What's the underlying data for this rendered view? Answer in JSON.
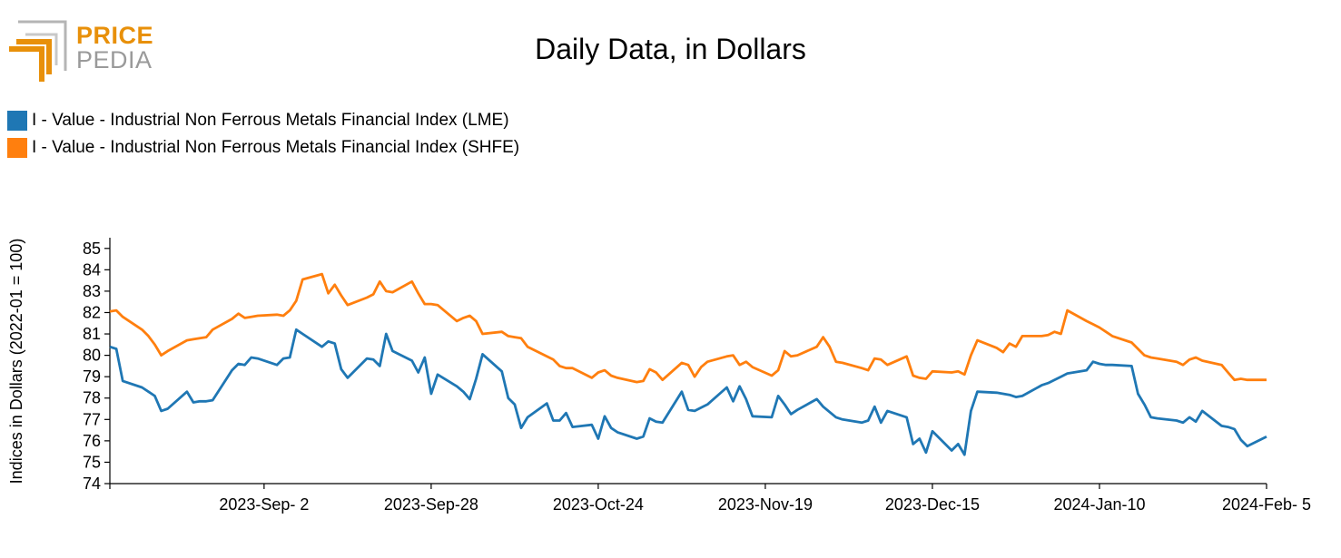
{
  "logo": {
    "word_top": "PRICE",
    "word_bottom": "PEDIA"
  },
  "colors": {
    "lme": "#1f77b4",
    "shfe": "#ff7f0e",
    "logo_orange": "#e8900a",
    "logo_gray": "#9a9a9a"
  },
  "chart_data": {
    "type": "line",
    "title": "Daily Data, in Dollars",
    "ylabel": "Indices in Dollars (2022-01 = 100)",
    "xlabel": "",
    "ylim": [
      74,
      85.5
    ],
    "yticks": [
      74,
      75,
      76,
      77,
      78,
      79,
      80,
      81,
      82,
      83,
      84,
      85
    ],
    "xlim": [
      "2023-08-09",
      "2024-02-05"
    ],
    "xticks": [
      {
        "date": "2023-09-02",
        "label": "2023-Sep- 2"
      },
      {
        "date": "2023-09-28",
        "label": "2023-Sep-28"
      },
      {
        "date": "2023-10-24",
        "label": "2023-Oct-24"
      },
      {
        "date": "2023-11-19",
        "label": "2023-Nov-19"
      },
      {
        "date": "2023-12-15",
        "label": "2023-Dec-15"
      },
      {
        "date": "2024-01-10",
        "label": "2024-Jan-10"
      },
      {
        "date": "2024-02-05",
        "label": "2024-Feb- 5"
      }
    ],
    "grid": false,
    "legend_position": "top-left",
    "series": [
      {
        "name": "I - Value - Industrial Non Ferrous Metals Financial Index (LME)",
        "color": "#1f77b4",
        "points": [
          [
            "2023-08-09",
            80.4
          ],
          [
            "2023-08-10",
            80.3
          ],
          [
            "2023-08-11",
            78.8
          ],
          [
            "2023-08-14",
            78.5
          ],
          [
            "2023-08-15",
            78.3
          ],
          [
            "2023-08-16",
            78.1
          ],
          [
            "2023-08-17",
            77.4
          ],
          [
            "2023-08-18",
            77.5
          ],
          [
            "2023-08-21",
            78.3
          ],
          [
            "2023-08-22",
            77.8
          ],
          [
            "2023-08-23",
            77.85
          ],
          [
            "2023-08-24",
            77.85
          ],
          [
            "2023-08-25",
            77.9
          ],
          [
            "2023-08-28",
            79.3
          ],
          [
            "2023-08-29",
            79.6
          ],
          [
            "2023-08-30",
            79.55
          ],
          [
            "2023-08-31",
            79.9
          ],
          [
            "2023-09-01",
            79.85
          ],
          [
            "2023-09-04",
            79.55
          ],
          [
            "2023-09-05",
            79.85
          ],
          [
            "2023-09-06",
            79.9
          ],
          [
            "2023-09-07",
            81.2
          ],
          [
            "2023-09-08",
            81.0
          ],
          [
            "2023-09-11",
            80.4
          ],
          [
            "2023-09-12",
            80.65
          ],
          [
            "2023-09-13",
            80.55
          ],
          [
            "2023-09-14",
            79.35
          ],
          [
            "2023-09-15",
            78.95
          ],
          [
            "2023-09-18",
            79.85
          ],
          [
            "2023-09-19",
            79.8
          ],
          [
            "2023-09-20",
            79.5
          ],
          [
            "2023-09-21",
            81.0
          ],
          [
            "2023-09-22",
            80.2
          ],
          [
            "2023-09-25",
            79.75
          ],
          [
            "2023-09-26",
            79.2
          ],
          [
            "2023-09-27",
            79.9
          ],
          [
            "2023-09-28",
            78.2
          ],
          [
            "2023-09-29",
            79.1
          ],
          [
            "2023-10-02",
            78.55
          ],
          [
            "2023-10-03",
            78.3
          ],
          [
            "2023-10-04",
            77.95
          ],
          [
            "2023-10-05",
            78.9
          ],
          [
            "2023-10-06",
            80.05
          ],
          [
            "2023-10-09",
            79.25
          ],
          [
            "2023-10-10",
            78.0
          ],
          [
            "2023-10-11",
            77.7
          ],
          [
            "2023-10-12",
            76.6
          ],
          [
            "2023-10-13",
            77.1
          ],
          [
            "2023-10-16",
            77.75
          ],
          [
            "2023-10-17",
            76.95
          ],
          [
            "2023-10-18",
            76.95
          ],
          [
            "2023-10-19",
            77.3
          ],
          [
            "2023-10-20",
            76.65
          ],
          [
            "2023-10-23",
            76.75
          ],
          [
            "2023-10-24",
            76.1
          ],
          [
            "2023-10-25",
            77.15
          ],
          [
            "2023-10-26",
            76.6
          ],
          [
            "2023-10-27",
            76.4
          ],
          [
            "2023-10-30",
            76.1
          ],
          [
            "2023-10-31",
            76.2
          ],
          [
            "2023-11-01",
            77.05
          ],
          [
            "2023-11-02",
            76.9
          ],
          [
            "2023-11-03",
            76.85
          ],
          [
            "2023-11-06",
            78.3
          ],
          [
            "2023-11-07",
            77.45
          ],
          [
            "2023-11-08",
            77.4
          ],
          [
            "2023-11-09",
            77.55
          ],
          [
            "2023-11-10",
            77.7
          ],
          [
            "2023-11-13",
            78.5
          ],
          [
            "2023-11-14",
            77.85
          ],
          [
            "2023-11-15",
            78.55
          ],
          [
            "2023-11-16",
            77.95
          ],
          [
            "2023-11-17",
            77.15
          ],
          [
            "2023-11-20",
            77.1
          ],
          [
            "2023-11-21",
            78.1
          ],
          [
            "2023-11-22",
            77.7
          ],
          [
            "2023-11-23",
            77.25
          ],
          [
            "2023-11-24",
            77.45
          ],
          [
            "2023-11-27",
            77.95
          ],
          [
            "2023-11-28",
            77.6
          ],
          [
            "2023-11-29",
            77.35
          ],
          [
            "2023-11-30",
            77.1
          ],
          [
            "2023-12-01",
            77.0
          ],
          [
            "2023-12-04",
            76.85
          ],
          [
            "2023-12-05",
            76.95
          ],
          [
            "2023-12-06",
            77.6
          ],
          [
            "2023-12-07",
            76.85
          ],
          [
            "2023-12-08",
            77.4
          ],
          [
            "2023-12-11",
            77.1
          ],
          [
            "2023-12-12",
            75.85
          ],
          [
            "2023-12-13",
            76.1
          ],
          [
            "2023-12-14",
            75.45
          ],
          [
            "2023-12-15",
            76.45
          ],
          [
            "2023-12-18",
            75.55
          ],
          [
            "2023-12-19",
            75.85
          ],
          [
            "2023-12-20",
            75.35
          ],
          [
            "2023-12-21",
            77.4
          ],
          [
            "2023-12-22",
            78.3
          ],
          [
            "2023-12-25",
            78.25
          ],
          [
            "2023-12-26",
            78.2
          ],
          [
            "2023-12-27",
            78.15
          ],
          [
            "2023-12-28",
            78.05
          ],
          [
            "2023-12-29",
            78.1
          ],
          [
            "2024-01-01",
            78.6
          ],
          [
            "2024-01-02",
            78.7
          ],
          [
            "2024-01-03",
            78.85
          ],
          [
            "2024-01-04",
            79.0
          ],
          [
            "2024-01-05",
            79.15
          ],
          [
            "2024-01-08",
            79.3
          ],
          [
            "2024-01-09",
            79.7
          ],
          [
            "2024-01-10",
            79.6
          ],
          [
            "2024-01-11",
            79.55
          ],
          [
            "2024-01-12",
            79.55
          ],
          [
            "2024-01-15",
            79.5
          ],
          [
            "2024-01-16",
            78.2
          ],
          [
            "2024-01-17",
            77.7
          ],
          [
            "2024-01-18",
            77.1
          ],
          [
            "2024-01-19",
            77.05
          ],
          [
            "2024-01-22",
            76.95
          ],
          [
            "2024-01-23",
            76.85
          ],
          [
            "2024-01-24",
            77.1
          ],
          [
            "2024-01-25",
            76.9
          ],
          [
            "2024-01-26",
            77.4
          ],
          [
            "2024-01-29",
            76.7
          ],
          [
            "2024-01-30",
            76.65
          ],
          [
            "2024-01-31",
            76.55
          ],
          [
            "2024-02-01",
            76.05
          ],
          [
            "2024-02-02",
            75.75
          ],
          [
            "2024-02-05",
            76.2
          ]
        ]
      },
      {
        "name": "I - Value - Industrial Non Ferrous Metals Financial Index (SHFE)",
        "color": "#ff7f0e",
        "points": [
          [
            "2023-08-09",
            82.05
          ],
          [
            "2023-08-10",
            82.1
          ],
          [
            "2023-08-11",
            81.8
          ],
          [
            "2023-08-14",
            81.2
          ],
          [
            "2023-08-15",
            80.9
          ],
          [
            "2023-08-16",
            80.5
          ],
          [
            "2023-08-17",
            80.0
          ],
          [
            "2023-08-18",
            80.2
          ],
          [
            "2023-08-21",
            80.7
          ],
          [
            "2023-08-22",
            80.75
          ],
          [
            "2023-08-23",
            80.8
          ],
          [
            "2023-08-24",
            80.85
          ],
          [
            "2023-08-25",
            81.2
          ],
          [
            "2023-08-28",
            81.7
          ],
          [
            "2023-08-29",
            81.95
          ],
          [
            "2023-08-30",
            81.75
          ],
          [
            "2023-08-31",
            81.8
          ],
          [
            "2023-09-01",
            81.85
          ],
          [
            "2023-09-04",
            81.9
          ],
          [
            "2023-09-05",
            81.85
          ],
          [
            "2023-09-06",
            82.1
          ],
          [
            "2023-09-07",
            82.55
          ],
          [
            "2023-09-08",
            83.55
          ],
          [
            "2023-09-11",
            83.8
          ],
          [
            "2023-09-12",
            82.9
          ],
          [
            "2023-09-13",
            83.3
          ],
          [
            "2023-09-14",
            82.8
          ],
          [
            "2023-09-15",
            82.35
          ],
          [
            "2023-09-18",
            82.7
          ],
          [
            "2023-09-19",
            82.85
          ],
          [
            "2023-09-20",
            83.45
          ],
          [
            "2023-09-21",
            83.0
          ],
          [
            "2023-09-22",
            82.95
          ],
          [
            "2023-09-25",
            83.45
          ],
          [
            "2023-09-26",
            82.9
          ],
          [
            "2023-09-27",
            82.4
          ],
          [
            "2023-09-28",
            82.4
          ],
          [
            "2023-09-29",
            82.35
          ],
          [
            "2023-10-02",
            81.6
          ],
          [
            "2023-10-03",
            81.75
          ],
          [
            "2023-10-04",
            81.85
          ],
          [
            "2023-10-05",
            81.6
          ],
          [
            "2023-10-06",
            81.0
          ],
          [
            "2023-10-09",
            81.1
          ],
          [
            "2023-10-10",
            80.9
          ],
          [
            "2023-10-11",
            80.85
          ],
          [
            "2023-10-12",
            80.8
          ],
          [
            "2023-10-13",
            80.4
          ],
          [
            "2023-10-16",
            79.95
          ],
          [
            "2023-10-17",
            79.8
          ],
          [
            "2023-10-18",
            79.5
          ],
          [
            "2023-10-19",
            79.4
          ],
          [
            "2023-10-20",
            79.4
          ],
          [
            "2023-10-23",
            78.95
          ],
          [
            "2023-10-24",
            79.2
          ],
          [
            "2023-10-25",
            79.3
          ],
          [
            "2023-10-26",
            79.05
          ],
          [
            "2023-10-27",
            78.95
          ],
          [
            "2023-10-30",
            78.75
          ],
          [
            "2023-10-31",
            78.8
          ],
          [
            "2023-11-01",
            79.35
          ],
          [
            "2023-11-02",
            79.2
          ],
          [
            "2023-11-03",
            78.85
          ],
          [
            "2023-11-06",
            79.65
          ],
          [
            "2023-11-07",
            79.55
          ],
          [
            "2023-11-08",
            79.0
          ],
          [
            "2023-11-09",
            79.45
          ],
          [
            "2023-11-10",
            79.7
          ],
          [
            "2023-11-13",
            79.95
          ],
          [
            "2023-11-14",
            80.0
          ],
          [
            "2023-11-15",
            79.55
          ],
          [
            "2023-11-16",
            79.7
          ],
          [
            "2023-11-17",
            79.45
          ],
          [
            "2023-11-20",
            79.05
          ],
          [
            "2023-11-21",
            79.3
          ],
          [
            "2023-11-22",
            80.2
          ],
          [
            "2023-11-23",
            79.95
          ],
          [
            "2023-11-24",
            80.0
          ],
          [
            "2023-11-27",
            80.4
          ],
          [
            "2023-11-28",
            80.85
          ],
          [
            "2023-11-29",
            80.4
          ],
          [
            "2023-11-30",
            79.7
          ],
          [
            "2023-12-01",
            79.65
          ],
          [
            "2023-12-04",
            79.4
          ],
          [
            "2023-12-05",
            79.3
          ],
          [
            "2023-12-06",
            79.85
          ],
          [
            "2023-12-07",
            79.8
          ],
          [
            "2023-12-08",
            79.55
          ],
          [
            "2023-12-11",
            79.95
          ],
          [
            "2023-12-12",
            79.05
          ],
          [
            "2023-12-13",
            78.95
          ],
          [
            "2023-12-14",
            78.9
          ],
          [
            "2023-12-15",
            79.25
          ],
          [
            "2023-12-18",
            79.2
          ],
          [
            "2023-12-19",
            79.25
          ],
          [
            "2023-12-20",
            79.1
          ],
          [
            "2023-12-21",
            80.0
          ],
          [
            "2023-12-22",
            80.7
          ],
          [
            "2023-12-25",
            80.35
          ],
          [
            "2023-12-26",
            80.15
          ],
          [
            "2023-12-27",
            80.55
          ],
          [
            "2023-12-28",
            80.4
          ],
          [
            "2023-12-29",
            80.9
          ],
          [
            "2024-01-01",
            80.9
          ],
          [
            "2024-01-02",
            80.95
          ],
          [
            "2024-01-03",
            81.1
          ],
          [
            "2024-01-04",
            81.0
          ],
          [
            "2024-01-05",
            82.1
          ],
          [
            "2024-01-08",
            81.6
          ],
          [
            "2024-01-09",
            81.45
          ],
          [
            "2024-01-10",
            81.3
          ],
          [
            "2024-01-11",
            81.1
          ],
          [
            "2024-01-12",
            80.9
          ],
          [
            "2024-01-15",
            80.6
          ],
          [
            "2024-01-16",
            80.3
          ],
          [
            "2024-01-17",
            80.0
          ],
          [
            "2024-01-18",
            79.9
          ],
          [
            "2024-01-19",
            79.85
          ],
          [
            "2024-01-22",
            79.7
          ],
          [
            "2024-01-23",
            79.55
          ],
          [
            "2024-01-24",
            79.8
          ],
          [
            "2024-01-25",
            79.9
          ],
          [
            "2024-01-26",
            79.75
          ],
          [
            "2024-01-29",
            79.55
          ],
          [
            "2024-01-30",
            79.2
          ],
          [
            "2024-01-31",
            78.85
          ],
          [
            "2024-02-01",
            78.9
          ],
          [
            "2024-02-02",
            78.85
          ],
          [
            "2024-02-05",
            78.85
          ]
        ]
      }
    ]
  }
}
